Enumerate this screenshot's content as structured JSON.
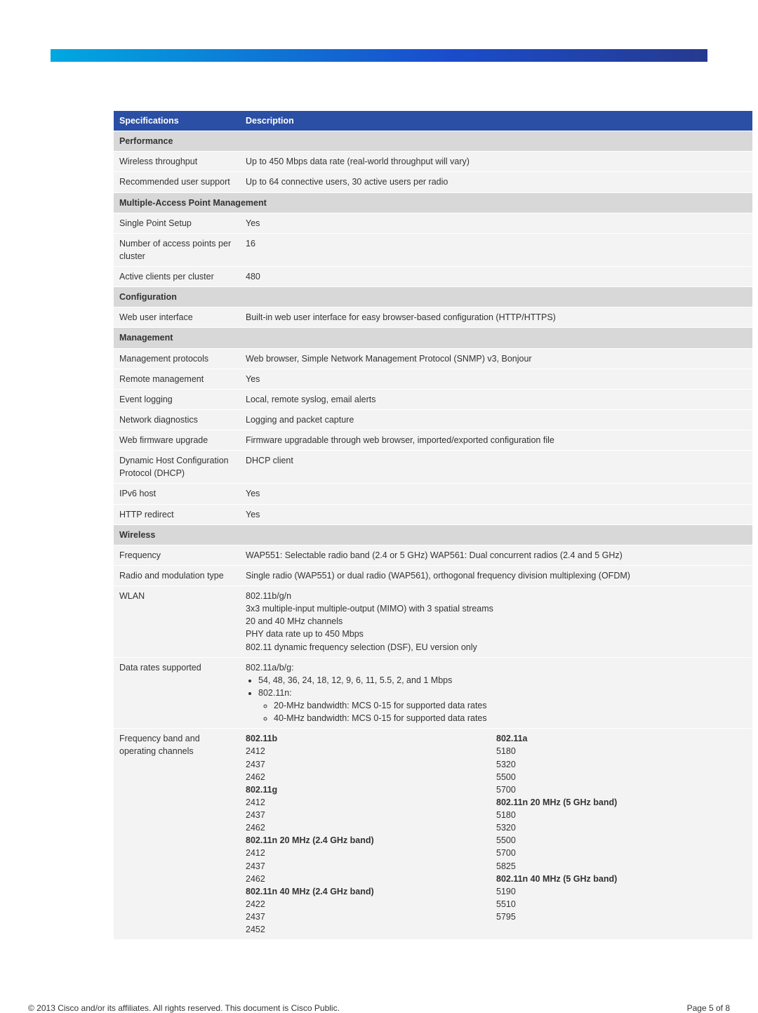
{
  "colors": {
    "header_bg": "#2a4fa5",
    "header_text": "#ffffff",
    "section_bg": "#d8d8d8",
    "row_bg": "#f3f3f3",
    "bar_gradient_start": "#00a8e0",
    "bar_gradient_mid": "#1a4dcc",
    "bar_gradient_end": "#263a8f"
  },
  "header": {
    "spec": "Specifications",
    "desc": "Description"
  },
  "sections": {
    "performance": {
      "title": "Performance",
      "rows": [
        {
          "spec": "Wireless throughput",
          "desc": "Up to 450 Mbps data rate (real-world throughput will vary)"
        },
        {
          "spec": "Recommended user support",
          "desc": "Up to 64 connective users, 30 active users per radio"
        }
      ]
    },
    "mapm": {
      "title": "Multiple-Access Point Management",
      "rows": [
        {
          "spec": "Single Point Setup",
          "desc": "Yes"
        },
        {
          "spec": "Number of access points per cluster",
          "desc": "16"
        },
        {
          "spec": "Active clients per cluster",
          "desc": "480"
        }
      ]
    },
    "config": {
      "title": "Configuration",
      "rows": [
        {
          "spec": "Web user interface",
          "desc": "Built-in web user interface for easy browser-based configuration (HTTP/HTTPS)"
        }
      ]
    },
    "mgmt": {
      "title": "Management",
      "rows": [
        {
          "spec": "Management protocols",
          "desc": "Web browser, Simple Network Management Protocol (SNMP) v3, Bonjour"
        },
        {
          "spec": "Remote management",
          "desc": "Yes"
        },
        {
          "spec": "Event logging",
          "desc": "Local, remote syslog, email alerts"
        },
        {
          "spec": "Network diagnostics",
          "desc": "Logging and packet capture"
        },
        {
          "spec": "Web firmware upgrade",
          "desc": "Firmware upgradable through web browser, imported/exported configuration file"
        },
        {
          "spec": "Dynamic Host Configuration Protocol (DHCP)",
          "desc": "DHCP client"
        },
        {
          "spec": "IPv6 host",
          "desc": "Yes"
        },
        {
          "spec": "HTTP redirect",
          "desc": "Yes"
        }
      ]
    },
    "wireless": {
      "title": "Wireless",
      "rows": [
        {
          "spec": "Frequency",
          "desc": "WAP551: Selectable radio band (2.4 or 5 GHz) WAP561: Dual concurrent radios (2.4 and 5 GHz)"
        },
        {
          "spec": "Radio and modulation type",
          "desc": "Single radio (WAP551) or dual radio (WAP561), orthogonal frequency division multiplexing (OFDM)"
        }
      ],
      "wlan": {
        "spec": "WLAN",
        "lines": [
          "802.11b/g/n",
          "3x3 multiple-input multiple-output (MIMO) with 3 spatial streams",
          "20 and 40 MHz channels",
          "PHY data rate up to 450 Mbps",
          "802.11 dynamic frequency selection (DSF), EU version only"
        ]
      },
      "data_rates": {
        "spec": "Data rates supported",
        "intro": "802.11a/b/g:",
        "b1": "54, 48, 36, 24, 18, 12, 9, 6, 11, 5.5, 2, and 1 Mbps",
        "b2": "802.11n:",
        "sub1": "20-MHz bandwidth: MCS 0-15 for supported data rates",
        "sub2": "40-MHz bandwidth: MCS 0-15 for supported data rates"
      },
      "freq_band": {
        "spec": "Frequency band and operating channels",
        "left": [
          {
            "t": "802.11b",
            "b": true
          },
          {
            "t": "2412"
          },
          {
            "t": "2437"
          },
          {
            "t": "2462"
          },
          {
            "t": "802.11g",
            "b": true
          },
          {
            "t": "2412"
          },
          {
            "t": "2437"
          },
          {
            "t": "2462"
          },
          {
            "t": "802.11n 20 MHz (2.4 GHz band)",
            "b": true
          },
          {
            "t": "2412"
          },
          {
            "t": "2437"
          },
          {
            "t": "2462"
          },
          {
            "t": "802.11n 40 MHz (2.4 GHz band)",
            "b": true
          },
          {
            "t": "2422"
          },
          {
            "t": "2437"
          },
          {
            "t": "2452"
          }
        ],
        "right": [
          {
            "t": "802.11a",
            "b": true
          },
          {
            "t": "5180"
          },
          {
            "t": "5320"
          },
          {
            "t": "5500"
          },
          {
            "t": "5700"
          },
          {
            "t": "802.11n 20 MHz (5 GHz band)",
            "b": true
          },
          {
            "t": "5180"
          },
          {
            "t": "5320"
          },
          {
            "t": "5500"
          },
          {
            "t": "5700"
          },
          {
            "t": "5825"
          },
          {
            "t": "802.11n 40 MHz (5 GHz band)",
            "b": true
          },
          {
            "t": "5190"
          },
          {
            "t": "5510"
          },
          {
            "t": "5795"
          }
        ]
      }
    }
  },
  "footer": {
    "copyright": "© 2013 Cisco and/or its affiliates. All rights reserved. This document is Cisco Public.",
    "page": "Page 5 of 8"
  }
}
